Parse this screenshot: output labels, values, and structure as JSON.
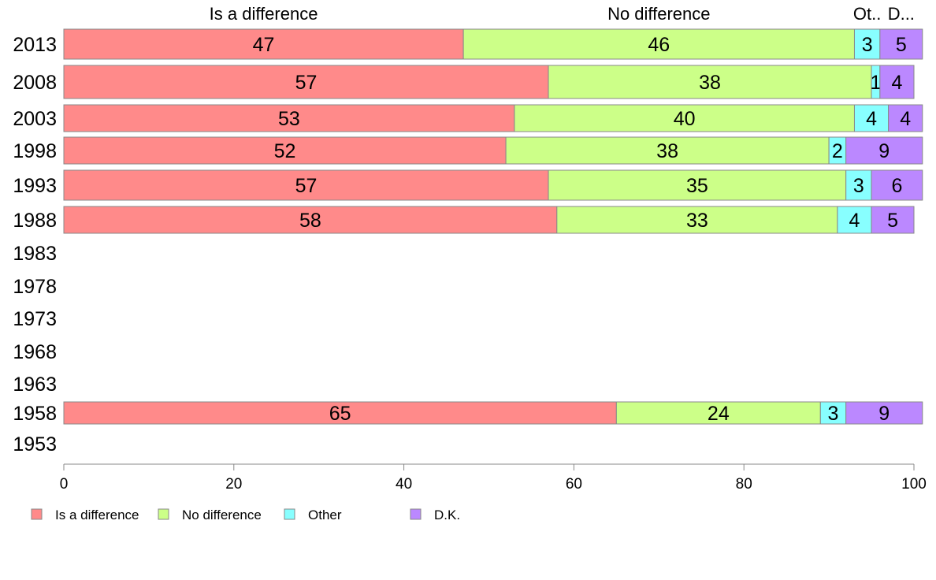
{
  "chart_data": {
    "type": "bar",
    "orientation": "horizontal",
    "stacked": true,
    "categories": [
      "2013",
      "2008",
      "2003",
      "1998",
      "1993",
      "1988",
      "1983",
      "1978",
      "1973",
      "1968",
      "1963",
      "1958",
      "1953"
    ],
    "series": [
      {
        "name": "Is a difference",
        "column_label": "Is a difference",
        "color": "#FF8A8A",
        "values": [
          47,
          57,
          53,
          52,
          57,
          58,
          null,
          null,
          null,
          null,
          null,
          65,
          null
        ]
      },
      {
        "name": "No difference",
        "column_label": "No difference",
        "color": "#CCFF88",
        "values": [
          46,
          38,
          40,
          38,
          35,
          33,
          null,
          null,
          null,
          null,
          null,
          24,
          null
        ]
      },
      {
        "name": "Other",
        "column_label": "Ot..",
        "color": "#88FFFF",
        "values": [
          3,
          1,
          4,
          2,
          3,
          4,
          null,
          null,
          null,
          null,
          null,
          3,
          null
        ]
      },
      {
        "name": "D.K.",
        "column_label": "D...",
        "color": "#BB88FF",
        "values": [
          5,
          4,
          4,
          9,
          6,
          5,
          null,
          null,
          null,
          null,
          null,
          9,
          null
        ]
      }
    ],
    "xlim": [
      0,
      100
    ],
    "xticks": [
      0,
      20,
      40,
      60,
      80,
      100
    ],
    "legend_position": "bottom-left",
    "grid": false
  }
}
